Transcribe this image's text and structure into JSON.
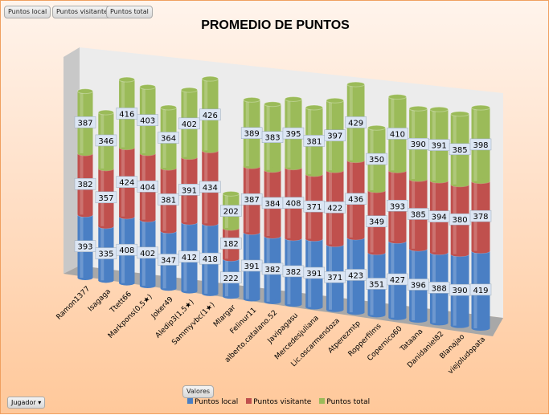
{
  "field_buttons": [
    "Puntos local",
    "Puntos visitante",
    "Puntos total"
  ],
  "values_button": "Valores",
  "row_filter": {
    "label": "Jugador",
    "icon": "dropdown-arrow-icon"
  },
  "chart_data": {
    "type": "bar",
    "stacked": true,
    "title": "PROMEDIO DE PUNTOS",
    "categories": [
      "Ramon1377",
      "Isagaga",
      "Ttett66",
      "Markpons(0,5★)",
      "Joker49",
      "Aledip3(1,5★)",
      "Sammyvbc(1★)",
      "Mlargar",
      "Felinur11",
      "alberto.catalano.52",
      "Javipagasu",
      "Mercedesjuliana",
      "Lic.oscarmendoza",
      "Atperezmtp",
      "Ropperfilms",
      "Copernico60",
      "Tataana",
      "Danidaniel82",
      "Blanajao",
      "viejoludopata"
    ],
    "series": [
      {
        "name": "Puntos local",
        "color": "#4a7fc4",
        "values": [
          393,
          335,
          408,
          402,
          347,
          412,
          418,
          222,
          391,
          382,
          382,
          391,
          371,
          423,
          351,
          427,
          396,
          388,
          390,
          419
        ]
      },
      {
        "name": "Puntos visitante",
        "color": "#c0504d",
        "values": [
          382,
          357,
          424,
          404,
          381,
          391,
          434,
          182,
          387,
          384,
          408,
          371,
          422,
          436,
          349,
          393,
          385,
          394,
          380,
          378
        ]
      },
      {
        "name": "Puntos total",
        "color": "#9bbb59",
        "values": [
          387,
          346,
          416,
          403,
          364,
          402,
          426,
          202,
          389,
          383,
          395,
          381,
          397,
          429,
          350,
          410,
          390,
          391,
          385,
          398
        ]
      }
    ],
    "legend": "bottom"
  }
}
